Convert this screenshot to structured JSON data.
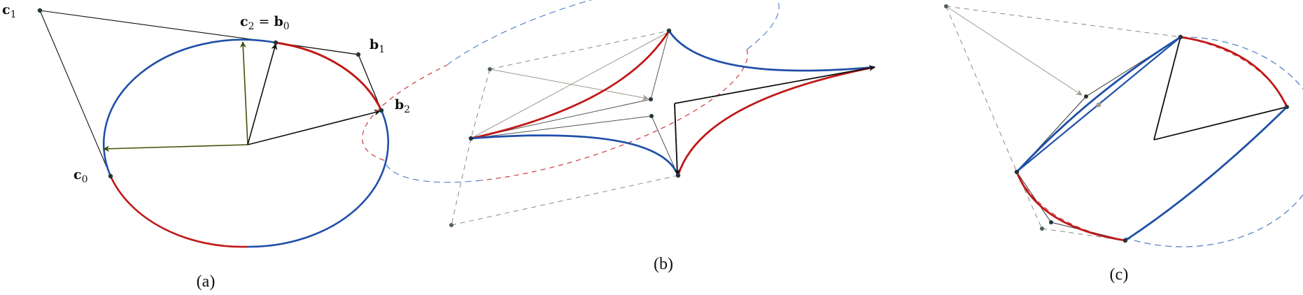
{
  "panels": [
    {
      "caption": "(a)"
    },
    {
      "caption": "(b)"
    },
    {
      "caption": "(c)"
    }
  ],
  "labels": {
    "c1": {
      "main": "c",
      "sub": "1"
    },
    "c2eqb0": {
      "main": "c",
      "sub": "2",
      "eq": " = ",
      "main2": "b",
      "sub2": "0"
    },
    "b1": {
      "main": "b",
      "sub": "1"
    },
    "b2": {
      "main": "b",
      "sub": "2"
    },
    "c0": {
      "main": "c",
      "sub": "0"
    }
  },
  "colors": {
    "blue": "#1f4fa8",
    "red": "#c01818",
    "olive": "#3d5208",
    "black": "#111111",
    "gray": "#a09a8e",
    "point": "#26343a",
    "point_gray": "#4f6060"
  }
}
